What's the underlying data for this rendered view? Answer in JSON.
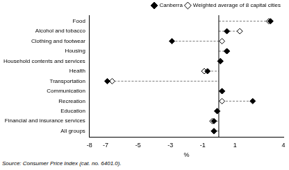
{
  "chart_data": {
    "type": "dot",
    "orientation": "horizontal",
    "categories": [
      "Food",
      "Alcohol and tobacco",
      "Clothing and footwear",
      "Housing",
      "Household contents and services",
      "Health",
      "Transportation",
      "Communication",
      "Recreation",
      "Education",
      "Financial and insurance services",
      "All groups"
    ],
    "series": [
      {
        "name": "Canberra",
        "color": "#000000",
        "marker": "filled diamond",
        "values": [
          3.2,
          0.5,
          -2.9,
          0.5,
          0.1,
          -0.7,
          -6.9,
          0.2,
          2.1,
          -0.1,
          -0.3,
          -0.3
        ]
      },
      {
        "name": "Weighted average of 8 capital cities",
        "color": "#000000",
        "marker": "hollow diamond",
        "values": [
          3.1,
          1.3,
          0.2,
          0.5,
          0.1,
          -0.9,
          -6.6,
          0.2,
          0.2,
          -0.1,
          -0.4,
          -0.3
        ]
      }
    ],
    "xlabel": "%",
    "xlim": [
      -8,
      4
    ],
    "xticks": [
      -8,
      -7,
      -5,
      -3,
      -1,
      1,
      4
    ],
    "grid": false,
    "legend": "upper right",
    "line_style": "dashed",
    "source": "Source: Consumer Price Index (cat. no. 6401.0)."
  }
}
